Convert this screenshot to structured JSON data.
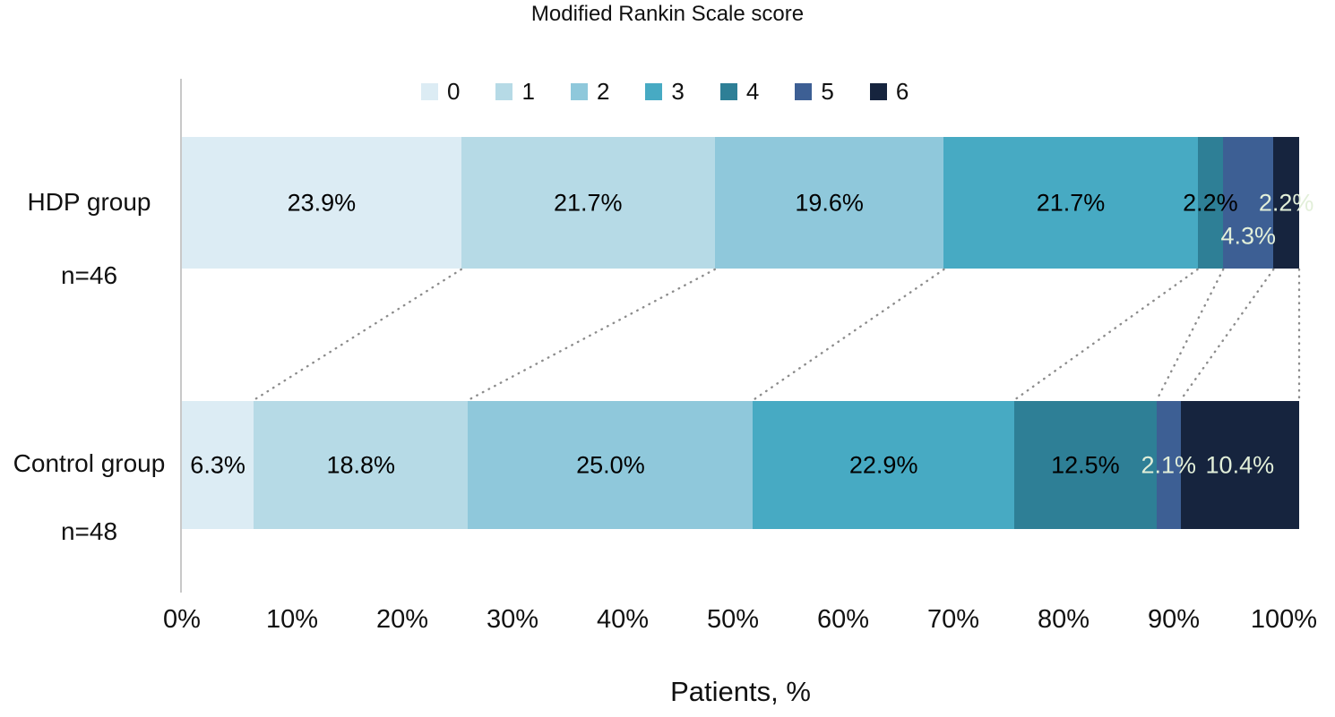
{
  "chart_data": {
    "type": "bar",
    "variant": "horizontal-stacked",
    "title": "Modified Rankin Scale score",
    "xlabel": "Patients, %",
    "x_ticks": [
      "0%",
      "10%",
      "20%",
      "30%",
      "40%",
      "50%",
      "60%",
      "70%",
      "80%",
      "90%",
      "100%"
    ],
    "xlim": [
      0,
      100
    ],
    "grid": false,
    "legend": {
      "position": "top",
      "entries": [
        "0",
        "1",
        "2",
        "3",
        "4",
        "5",
        "6"
      ]
    },
    "colors": [
      "#DCECF4",
      "#B6DAE6",
      "#8FC8DB",
      "#47AAC3",
      "#2E7F96",
      "#3D5F94",
      "#16243E"
    ],
    "label_colors": {
      "dark": "#000000",
      "light": "#E2EFD9"
    },
    "axis_color": "#C8C8C8",
    "connectors": {
      "style": "dotted",
      "color": "#8C8C8C"
    },
    "groups": [
      {
        "label": "HDP group",
        "n": "n=46",
        "values": [
          23.9,
          21.7,
          19.6,
          21.7,
          2.2,
          4.3,
          2.2
        ],
        "labels": [
          "23.9%",
          "21.7%",
          "19.6%",
          "21.7%",
          "2.2%",
          "4.3%",
          "2.2%"
        ],
        "label_styles": [
          "dark",
          "dark",
          "dark",
          "dark",
          "dark",
          "light",
          "light"
        ],
        "label_dy": [
          0,
          0,
          0,
          0,
          0,
          37,
          0
        ]
      },
      {
        "label": "Control group",
        "n": "n=48",
        "values": [
          6.3,
          18.8,
          25.0,
          22.9,
          12.5,
          2.1,
          10.4
        ],
        "labels": [
          "6.3%",
          "18.8%",
          "25.0%",
          "22.9%",
          "12.5%",
          "2.1%",
          "10.4%"
        ],
        "label_styles": [
          "dark",
          "dark",
          "dark",
          "dark",
          "dark",
          "light",
          "light"
        ],
        "label_dy": [
          0,
          0,
          0,
          0,
          0,
          0,
          0
        ]
      }
    ]
  }
}
